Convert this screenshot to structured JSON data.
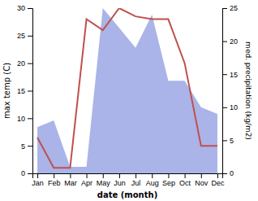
{
  "chart_data": {
    "type": "line",
    "categories": [
      "Jan",
      "Feb",
      "Mar",
      "Apr",
      "May",
      "Jun",
      "Jul",
      "Aug",
      "Sep",
      "Oct",
      "Nov",
      "Dec"
    ],
    "xlabel": "date (month)",
    "ylabel": "max temp (C)",
    "y2label": "med. precipitation (kg/m2)",
    "series": [
      {
        "type": "area",
        "axis": "y2",
        "color": "#aab4e8",
        "values": [
          7.0,
          8.0,
          1.0,
          1.0,
          25.0,
          22.0,
          19.0,
          24.0,
          14.0,
          14.0,
          10.0,
          9.0
        ]
      },
      {
        "type": "line",
        "color": "#c0504d",
        "values": [
          6.5,
          1.0,
          1.0,
          28.0,
          26.0,
          30.0,
          28.5,
          28.0,
          28.0,
          20.0,
          5.0,
          5.0
        ]
      }
    ],
    "ylim": [
      0,
      30
    ],
    "yticks": [
      0,
      5,
      10,
      15,
      20,
      25,
      30
    ],
    "y2lim": [
      0,
      25
    ],
    "y2ticks": [
      0,
      5,
      10,
      15,
      20,
      25
    ],
    "grid": false
  }
}
